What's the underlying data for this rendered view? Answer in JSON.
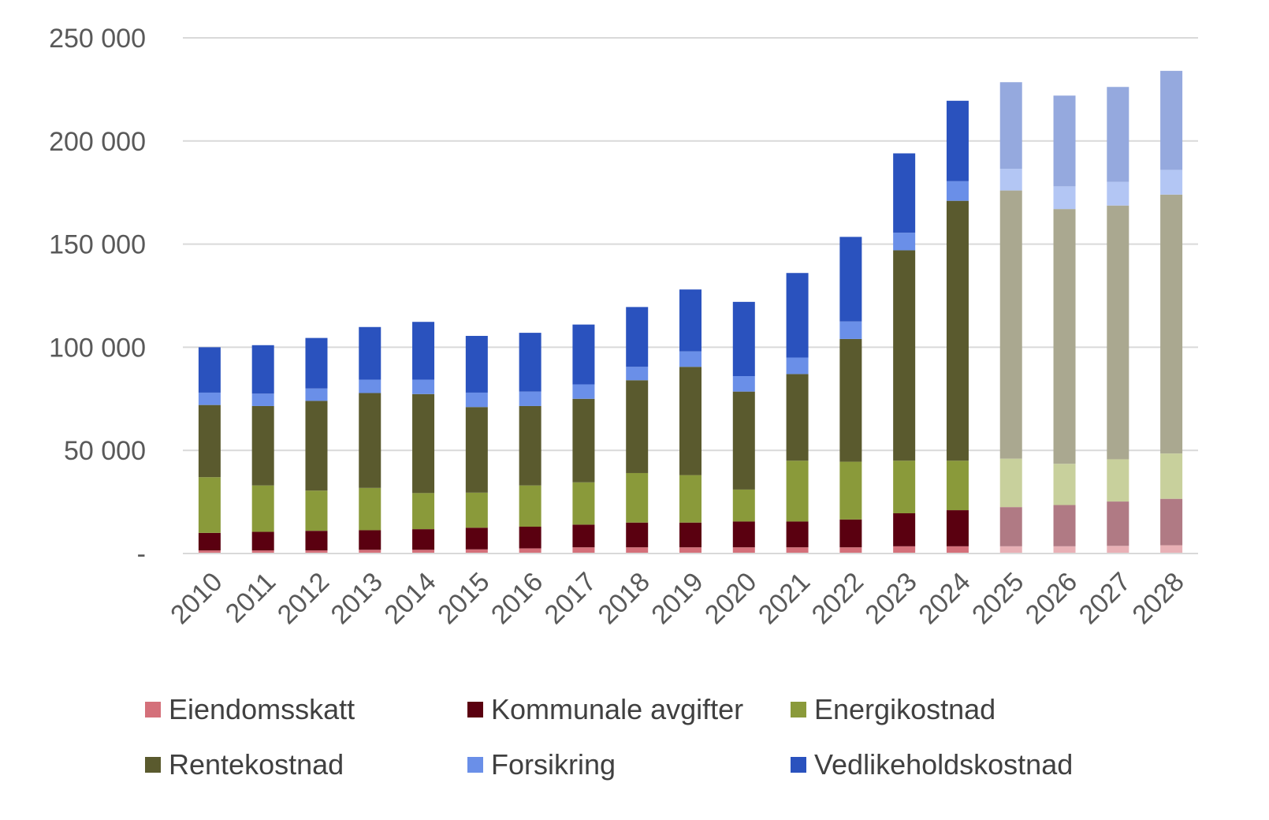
{
  "chart_data": {
    "type": "bar",
    "stacked": true,
    "title": "",
    "xlabel": "",
    "ylabel": "",
    "ylim": [
      0,
      250000
    ],
    "y_ticks": [
      0,
      50000,
      100000,
      150000,
      200000,
      250000
    ],
    "y_tick_labels": [
      "-",
      "50 000",
      "100 000",
      "150 000",
      "200 000",
      "250 000"
    ],
    "grid": true,
    "legend_position": "bottom",
    "categories": [
      "2010",
      "2011",
      "2012",
      "2013",
      "2014",
      "2015",
      "2016",
      "2017",
      "2018",
      "2019",
      "2020",
      "2021",
      "2022",
      "2023",
      "2024",
      "2025",
      "2026",
      "2027",
      "2028"
    ],
    "projected_from_index": 15,
    "series": [
      {
        "name": "Eiendomsskatt",
        "color": "#d4707a",
        "projected_color": "#e8b0b5",
        "values": [
          1500,
          1500,
          1500,
          1800,
          1800,
          2000,
          2500,
          3000,
          3000,
          3000,
          3000,
          3000,
          3000,
          3500,
          3500,
          3500,
          3500,
          3700,
          4000
        ]
      },
      {
        "name": "Kommunale avgifter",
        "color": "#5a0010",
        "projected_color": "#b07a84",
        "values": [
          8500,
          9000,
          9500,
          9500,
          10000,
          10500,
          10500,
          11000,
          12000,
          12000,
          12500,
          12500,
          13500,
          16000,
          17500,
          19000,
          20000,
          21500,
          22500
        ]
      },
      {
        "name": "Energikostnad",
        "color": "#8a9a3a",
        "projected_color": "#c8d09c",
        "values": [
          27000,
          22500,
          19500,
          20500,
          17500,
          17000,
          20000,
          20500,
          24000,
          23000,
          15500,
          29500,
          28000,
          25500,
          24000,
          23500,
          20000,
          20500,
          22000
        ]
      },
      {
        "name": "Rentekostnad",
        "color": "#5a5a2e",
        "projected_color": "#aaa890",
        "values": [
          35000,
          38500,
          43500,
          46000,
          48000,
          41500,
          38500,
          40500,
          45000,
          52500,
          47500,
          42000,
          59500,
          102000,
          126000,
          130000,
          123500,
          123000,
          125500
        ]
      },
      {
        "name": "Forsikring",
        "color": "#6a8fe8",
        "projected_color": "#b3c6f4",
        "values": [
          6000,
          6000,
          6000,
          6500,
          7000,
          7000,
          7000,
          7000,
          6500,
          7500,
          7500,
          8000,
          8500,
          8500,
          9500,
          10500,
          11000,
          11500,
          12000
        ]
      },
      {
        "name": "Vedlikeholdskostnad",
        "color": "#2a52be",
        "projected_color": "#95a9de",
        "values": [
          22000,
          23500,
          24500,
          25500,
          28000,
          27500,
          28500,
          29000,
          29000,
          30000,
          36000,
          41000,
          41000,
          38500,
          39000,
          42000,
          44000,
          46000,
          48000
        ]
      }
    ]
  }
}
